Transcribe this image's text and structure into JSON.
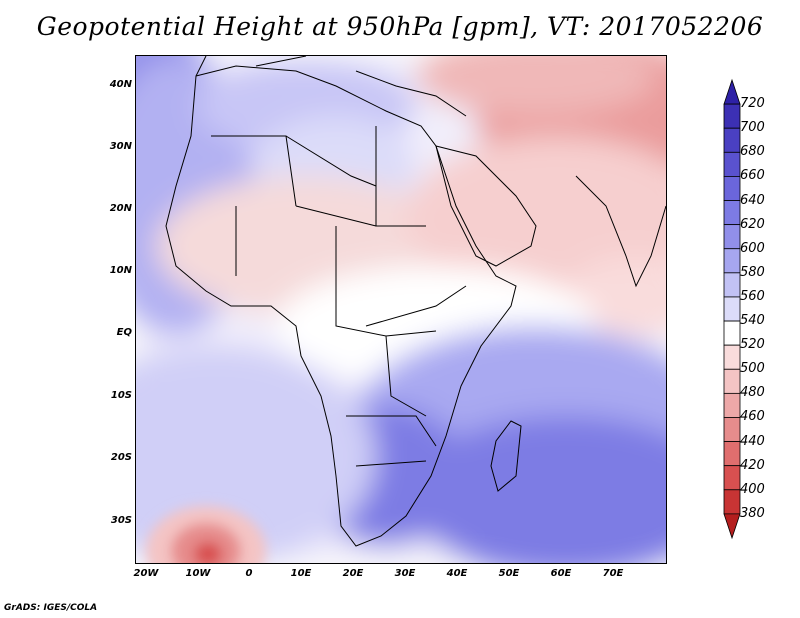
{
  "title": "Geopotential Height at 950hPa [gpm], VT: 2017052206",
  "footer": "GrADS: IGES/COLA",
  "axes": {
    "lat_labels": [
      "40N",
      "30N",
      "20N",
      "10N",
      "EQ",
      "10S",
      "20S",
      "30S"
    ],
    "lon_labels": [
      "20W",
      "10W",
      "0",
      "10E",
      "20E",
      "30E",
      "40E",
      "50E",
      "60E",
      "70E"
    ]
  },
  "colorbar": {
    "levels": [
      "720",
      "700",
      "680",
      "660",
      "640",
      "620",
      "600",
      "580",
      "560",
      "540",
      "520",
      "500",
      "480",
      "460",
      "440",
      "420",
      "400",
      "380"
    ],
    "colors": [
      "#2e21a6",
      "#3c30b4",
      "#4a40c2",
      "#5a52cf",
      "#6b66db",
      "#7d7be4",
      "#918fea",
      "#a6a6f0",
      "#c2c2f5",
      "#dcdcf9",
      "#ffffff",
      "#f9dcdc",
      "#f4c4c4",
      "#eda8a8",
      "#e68c8c",
      "#e06e6e",
      "#d85050",
      "#c83434",
      "#b41e1e"
    ]
  },
  "map": {
    "region": "Africa and Middle East",
    "lat_range": [
      -37,
      45
    ],
    "lon_range": [
      -22,
      80
    ]
  }
}
